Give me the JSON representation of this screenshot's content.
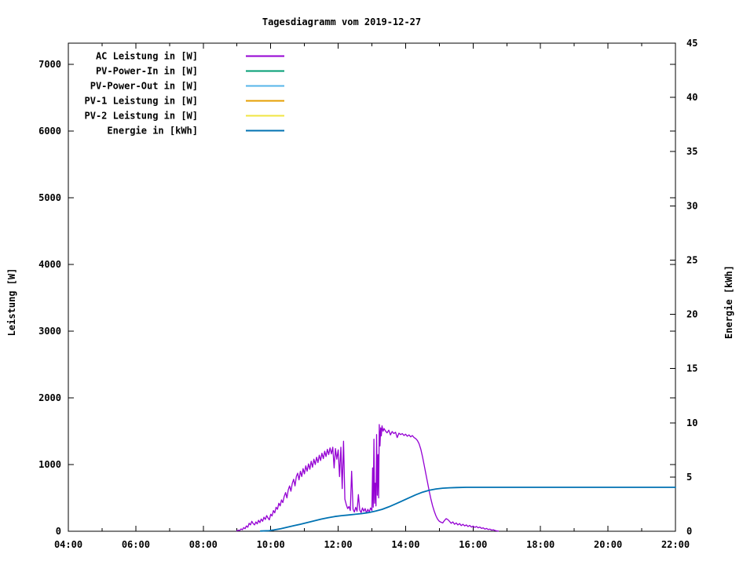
{
  "title": "Tagesdiagramm vom 2019-12-27",
  "chart_data": {
    "type": "line",
    "title": "Tagesdiagramm vom 2019-12-27",
    "grid": false,
    "legend_position": "top-left-inside",
    "x_axis": {
      "range_hours": [
        4,
        22
      ],
      "tick_hours": [
        4,
        6,
        8,
        10,
        12,
        14,
        16,
        18,
        20,
        22
      ],
      "tick_labels": [
        "04:00",
        "06:00",
        "08:00",
        "10:00",
        "12:00",
        "14:00",
        "16:00",
        "18:00",
        "20:00",
        "22:00"
      ],
      "minor_tick_hours": [
        5,
        7,
        9,
        11,
        13,
        15,
        17,
        19,
        21
      ]
    },
    "y_axis": {
      "label": "Leistung [W]",
      "ticks": [
        0,
        1000,
        2000,
        3000,
        4000,
        5000,
        6000,
        7000
      ],
      "range": [
        0,
        7320
      ]
    },
    "y2_axis": {
      "label": "Energie [kWh]",
      "ticks": [
        0,
        5,
        10,
        15,
        20,
        25,
        30,
        35,
        40,
        45
      ],
      "range": [
        0,
        45
      ]
    },
    "series": [
      {
        "name": "AC Leistung in [W]",
        "color": "#9400d3",
        "axis": "y",
        "points": [
          [
            9.0,
            5
          ],
          [
            9.04,
            18
          ],
          [
            9.08,
            10
          ],
          [
            9.12,
            35
          ],
          [
            9.16,
            22
          ],
          [
            9.2,
            55
          ],
          [
            9.24,
            38
          ],
          [
            9.28,
            80
          ],
          [
            9.32,
            60
          ],
          [
            9.36,
            120
          ],
          [
            9.4,
            95
          ],
          [
            9.44,
            150
          ],
          [
            9.48,
            115
          ],
          [
            9.52,
            95
          ],
          [
            9.56,
            140
          ],
          [
            9.6,
            110
          ],
          [
            9.64,
            165
          ],
          [
            9.68,
            130
          ],
          [
            9.72,
            185
          ],
          [
            9.76,
            150
          ],
          [
            9.8,
            210
          ],
          [
            9.84,
            175
          ],
          [
            9.88,
            235
          ],
          [
            9.92,
            200
          ],
          [
            9.96,
            170
          ],
          [
            10.0,
            255
          ],
          [
            10.04,
            230
          ],
          [
            10.08,
            310
          ],
          [
            10.12,
            275
          ],
          [
            10.16,
            360
          ],
          [
            10.2,
            330
          ],
          [
            10.24,
            420
          ],
          [
            10.28,
            380
          ],
          [
            10.32,
            470
          ],
          [
            10.36,
            430
          ],
          [
            10.4,
            520
          ],
          [
            10.44,
            580
          ],
          [
            10.48,
            500
          ],
          [
            10.52,
            620
          ],
          [
            10.56,
            680
          ],
          [
            10.6,
            600
          ],
          [
            10.64,
            720
          ],
          [
            10.68,
            780
          ],
          [
            10.72,
            680
          ],
          [
            10.76,
            820
          ],
          [
            10.8,
            870
          ],
          [
            10.84,
            770
          ],
          [
            10.88,
            900
          ],
          [
            10.92,
            820
          ],
          [
            10.96,
            940
          ],
          [
            11.0,
            860
          ],
          [
            11.04,
            980
          ],
          [
            11.08,
            900
          ],
          [
            11.12,
            1010
          ],
          [
            11.16,
            930
          ],
          [
            11.2,
            1050
          ],
          [
            11.24,
            960
          ],
          [
            11.28,
            1080
          ],
          [
            11.32,
            1000
          ],
          [
            11.36,
            1110
          ],
          [
            11.4,
            1030
          ],
          [
            11.44,
            1140
          ],
          [
            11.48,
            1060
          ],
          [
            11.52,
            1170
          ],
          [
            11.56,
            1090
          ],
          [
            11.6,
            1200
          ],
          [
            11.64,
            1120
          ],
          [
            11.68,
            1230
          ],
          [
            11.72,
            1150
          ],
          [
            11.76,
            1250
          ],
          [
            11.8,
            1160
          ],
          [
            11.84,
            1260
          ],
          [
            11.88,
            950
          ],
          [
            11.92,
            1240
          ],
          [
            11.96,
            1080
          ],
          [
            12.0,
            1220
          ],
          [
            12.04,
            820
          ],
          [
            12.08,
            1260
          ],
          [
            12.12,
            640
          ],
          [
            12.16,
            1350
          ],
          [
            12.2,
            480
          ],
          [
            12.24,
            400
          ],
          [
            12.28,
            340
          ],
          [
            12.32,
            370
          ],
          [
            12.36,
            310
          ],
          [
            12.4,
            900
          ],
          [
            12.44,
            330
          ],
          [
            12.48,
            290
          ],
          [
            12.52,
            360
          ],
          [
            12.56,
            300
          ],
          [
            12.6,
            550
          ],
          [
            12.64,
            320
          ],
          [
            12.68,
            280
          ],
          [
            12.72,
            350
          ],
          [
            12.76,
            300
          ],
          [
            12.8,
            340
          ],
          [
            12.84,
            270
          ],
          [
            12.88,
            330
          ],
          [
            12.92,
            290
          ],
          [
            12.96,
            350
          ],
          [
            13.0,
            310
          ],
          [
            13.02,
            950
          ],
          [
            13.04,
            360
          ],
          [
            13.06,
            1380
          ],
          [
            13.08,
            420
          ],
          [
            13.1,
            720
          ],
          [
            13.12,
            380
          ],
          [
            13.14,
            1450
          ],
          [
            13.16,
            540
          ],
          [
            13.18,
            1150
          ],
          [
            13.2,
            500
          ],
          [
            13.22,
            1600
          ],
          [
            13.24,
            1280
          ],
          [
            13.26,
            1550
          ],
          [
            13.28,
            1430
          ],
          [
            13.3,
            1580
          ],
          [
            13.33,
            1500
          ],
          [
            13.36,
            1540
          ],
          [
            13.4,
            1505
          ],
          [
            13.45,
            1475
          ],
          [
            13.5,
            1515
          ],
          [
            13.55,
            1445
          ],
          [
            13.6,
            1495
          ],
          [
            13.65,
            1465
          ],
          [
            13.7,
            1485
          ],
          [
            13.75,
            1405
          ],
          [
            13.8,
            1470
          ],
          [
            13.85,
            1450
          ],
          [
            13.9,
            1465
          ],
          [
            13.95,
            1435
          ],
          [
            14.0,
            1455
          ],
          [
            14.05,
            1425
          ],
          [
            14.1,
            1445
          ],
          [
            14.15,
            1415
          ],
          [
            14.2,
            1435
          ],
          [
            14.25,
            1405
          ],
          [
            14.3,
            1390
          ],
          [
            14.35,
            1360
          ],
          [
            14.4,
            1310
          ],
          [
            14.45,
            1230
          ],
          [
            14.5,
            1120
          ],
          [
            14.55,
            990
          ],
          [
            14.6,
            860
          ],
          [
            14.65,
            730
          ],
          [
            14.7,
            600
          ],
          [
            14.75,
            480
          ],
          [
            14.8,
            380
          ],
          [
            14.85,
            300
          ],
          [
            14.9,
            230
          ],
          [
            14.95,
            180
          ],
          [
            15.0,
            150
          ],
          [
            15.05,
            135
          ],
          [
            15.1,
            125
          ],
          [
            15.15,
            160
          ],
          [
            15.2,
            190
          ],
          [
            15.25,
            175
          ],
          [
            15.3,
            150
          ],
          [
            15.35,
            120
          ],
          [
            15.4,
            140
          ],
          [
            15.45,
            105
          ],
          [
            15.5,
            125
          ],
          [
            15.55,
            95
          ],
          [
            15.6,
            115
          ],
          [
            15.65,
            85
          ],
          [
            15.7,
            105
          ],
          [
            15.75,
            80
          ],
          [
            15.8,
            95
          ],
          [
            15.85,
            70
          ],
          [
            15.9,
            88
          ],
          [
            15.95,
            62
          ],
          [
            16.0,
            78
          ],
          [
            16.05,
            58
          ],
          [
            16.1,
            72
          ],
          [
            16.15,
            52
          ],
          [
            16.2,
            62
          ],
          [
            16.25,
            42
          ],
          [
            16.3,
            52
          ],
          [
            16.35,
            32
          ],
          [
            16.4,
            42
          ],
          [
            16.45,
            26
          ],
          [
            16.5,
            32
          ],
          [
            16.55,
            18
          ],
          [
            16.6,
            22
          ],
          [
            16.65,
            12
          ],
          [
            16.7,
            6
          ],
          [
            16.75,
            2
          ]
        ]
      },
      {
        "name": "PV-Power-In in [W]",
        "color": "#009e73",
        "axis": "y",
        "points": []
      },
      {
        "name": "PV-Power-Out in [W]",
        "color": "#56b4e9",
        "axis": "y",
        "points": []
      },
      {
        "name": "PV-1 Leistung in [W]",
        "color": "#e69f00",
        "axis": "y",
        "points": []
      },
      {
        "name": "PV-2 Leistung in [W]",
        "color": "#f0e442",
        "axis": "y",
        "points": []
      },
      {
        "name": "Energie in [kWh]",
        "color": "#0072b2",
        "axis": "y2",
        "points": [
          [
            9.7,
            0.02
          ],
          [
            9.95,
            0.05
          ],
          [
            10.1,
            0.12
          ],
          [
            10.3,
            0.24
          ],
          [
            10.5,
            0.38
          ],
          [
            10.7,
            0.52
          ],
          [
            10.9,
            0.66
          ],
          [
            11.1,
            0.82
          ],
          [
            11.3,
            0.97
          ],
          [
            11.5,
            1.12
          ],
          [
            11.7,
            1.25
          ],
          [
            11.9,
            1.36
          ],
          [
            12.1,
            1.44
          ],
          [
            12.3,
            1.5
          ],
          [
            12.5,
            1.56
          ],
          [
            12.7,
            1.63
          ],
          [
            12.9,
            1.72
          ],
          [
            13.1,
            1.85
          ],
          [
            13.3,
            2.02
          ],
          [
            13.5,
            2.25
          ],
          [
            13.7,
            2.52
          ],
          [
            13.9,
            2.8
          ],
          [
            14.1,
            3.08
          ],
          [
            14.3,
            3.36
          ],
          [
            14.5,
            3.6
          ],
          [
            14.7,
            3.78
          ],
          [
            14.9,
            3.9
          ],
          [
            15.1,
            3.97
          ],
          [
            15.3,
            4.01
          ],
          [
            15.5,
            4.03
          ],
          [
            15.8,
            4.05
          ],
          [
            16.5,
            4.05
          ],
          [
            22.0,
            4.05
          ]
        ]
      }
    ]
  }
}
